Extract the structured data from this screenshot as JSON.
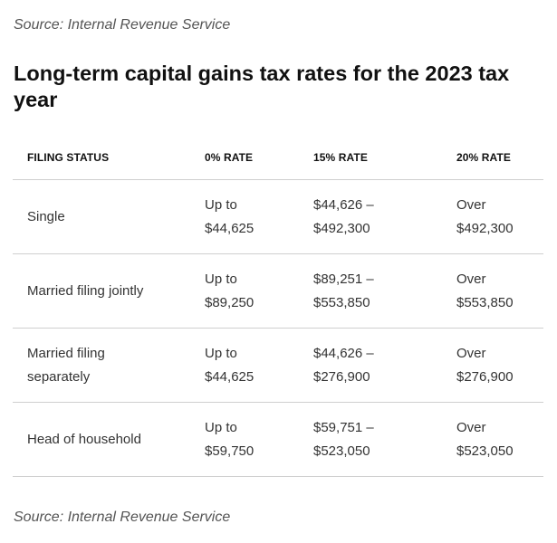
{
  "source_top": "Source: Internal Revenue Service",
  "title": "Long-term capital gains tax rates for the 2023 tax year",
  "table": {
    "headers": [
      "FILING STATUS",
      "0% RATE",
      "15% RATE",
      "20% RATE"
    ],
    "rows": [
      {
        "status": [
          "Single"
        ],
        "rate0": [
          "Up to",
          "$44,625"
        ],
        "rate15": [
          "$44,626 –",
          "$492,300"
        ],
        "rate20": [
          "Over",
          "$492,300"
        ]
      },
      {
        "status": [
          "Married filing jointly"
        ],
        "rate0": [
          "Up to",
          "$89,250"
        ],
        "rate15": [
          "$89,251 –",
          "$553,850"
        ],
        "rate20": [
          "Over",
          "$553,850"
        ]
      },
      {
        "status": [
          "Married filing",
          "separately"
        ],
        "rate0": [
          "Up to",
          "$44,625"
        ],
        "rate15": [
          "$44,626 –",
          "$276,900"
        ],
        "rate20": [
          "Over",
          "$276,900"
        ]
      },
      {
        "status": [
          "Head of household"
        ],
        "rate0": [
          "Up to",
          "$59,750"
        ],
        "rate15": [
          "$59,751 –",
          "$523,050"
        ],
        "rate20": [
          "Over",
          "$523,050"
        ]
      }
    ]
  },
  "source_bottom": "Source: Internal Revenue Service"
}
